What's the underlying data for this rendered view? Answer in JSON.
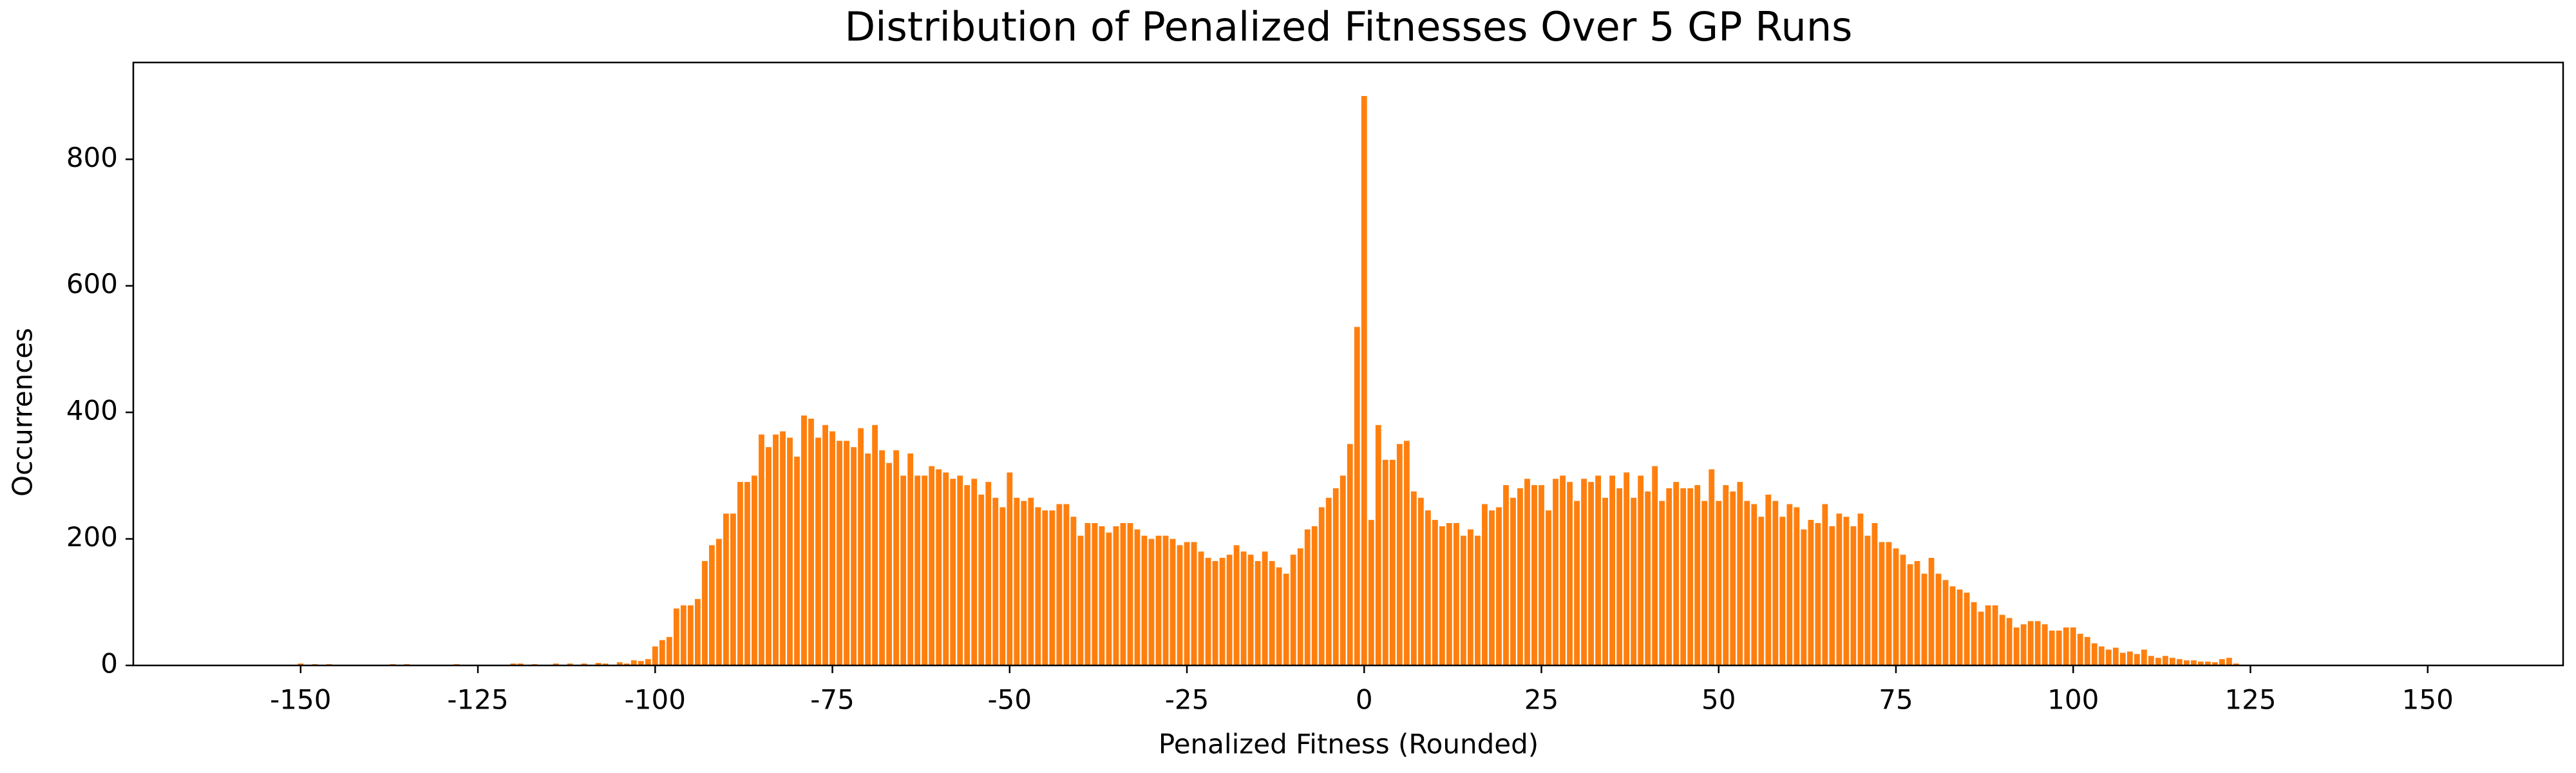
{
  "chart_data": {
    "type": "bar",
    "title": "Distribution of Penalized Fitnesses Over 5 GP Runs",
    "xlabel": "Penalized Fitness (Rounded)",
    "ylabel": "Occurrences",
    "color": "#ff7f0e",
    "xlim": [
      -173.6,
      169.1
    ],
    "ylim": [
      0,
      953
    ],
    "xticks": [
      -150,
      -125,
      -100,
      -75,
      -50,
      -25,
      0,
      25,
      50,
      75,
      100,
      125,
      150
    ],
    "yticks": [
      0,
      200,
      400,
      600,
      800
    ],
    "grid": false,
    "x": [
      -150,
      -148,
      -146,
      -137,
      -135,
      -130,
      -128,
      -120,
      -119,
      -117,
      -114,
      -112,
      -110,
      -108,
      -107,
      -105,
      -104,
      -103,
      -102,
      -101,
      -100,
      -99,
      -98,
      -97,
      -96,
      -95,
      -94,
      -93,
      -92,
      -91,
      -90,
      -89,
      -88,
      -87,
      -86,
      -85,
      -84,
      -83,
      -82,
      -81,
      -80,
      -79,
      -78,
      -77,
      -76,
      -75,
      -74,
      -73,
      -72,
      -71,
      -70,
      -69,
      -68,
      -67,
      -66,
      -65,
      -64,
      -63,
      -62,
      -61,
      -60,
      -59,
      -58,
      -57,
      -56,
      -55,
      -54,
      -53,
      -52,
      -51,
      -50,
      -49,
      -48,
      -47,
      -46,
      -45,
      -44,
      -43,
      -42,
      -41,
      -40,
      -39,
      -38,
      -37,
      -36,
      -35,
      -34,
      -33,
      -32,
      -31,
      -30,
      -29,
      -28,
      -27,
      -26,
      -25,
      -24,
      -23,
      -22,
      -21,
      -20,
      -19,
      -18,
      -17,
      -16,
      -15,
      -14,
      -13,
      -12,
      -11,
      -10,
      -9,
      -8,
      -7,
      -6,
      -5,
      -4,
      -3,
      -2,
      -1,
      0,
      1,
      2,
      3,
      4,
      5,
      6,
      7,
      8,
      9,
      10,
      11,
      12,
      13,
      14,
      15,
      16,
      17,
      18,
      19,
      20,
      21,
      22,
      23,
      24,
      25,
      26,
      27,
      28,
      29,
      30,
      31,
      32,
      33,
      34,
      35,
      36,
      37,
      38,
      39,
      40,
      41,
      42,
      43,
      44,
      45,
      46,
      47,
      48,
      49,
      50,
      51,
      52,
      53,
      54,
      55,
      56,
      57,
      58,
      59,
      60,
      61,
      62,
      63,
      64,
      65,
      66,
      67,
      68,
      69,
      70,
      71,
      72,
      73,
      74,
      75,
      76,
      77,
      78,
      79,
      80,
      81,
      82,
      83,
      84,
      85,
      86,
      87,
      88,
      89,
      90,
      91,
      92,
      93,
      94,
      95,
      96,
      97,
      98,
      99,
      100,
      101,
      102,
      103,
      104,
      105,
      106,
      107,
      108,
      109,
      110,
      111,
      112,
      113,
      114,
      115,
      116,
      117,
      118,
      119,
      120,
      121,
      122,
      123
    ],
    "values": [
      3,
      2,
      2,
      2,
      2,
      1,
      2,
      3,
      3,
      2,
      3,
      3,
      3,
      4,
      3,
      5,
      3,
      8,
      7,
      10,
      30,
      40,
      45,
      90,
      95,
      95,
      105,
      165,
      190,
      200,
      240,
      240,
      290,
      290,
      300,
      365,
      345,
      365,
      370,
      360,
      330,
      395,
      390,
      360,
      380,
      370,
      355,
      355,
      345,
      375,
      335,
      380,
      340,
      320,
      340,
      300,
      335,
      300,
      300,
      315,
      310,
      305,
      295,
      300,
      285,
      295,
      270,
      290,
      265,
      250,
      305,
      265,
      260,
      265,
      250,
      245,
      245,
      255,
      255,
      235,
      205,
      225,
      225,
      220,
      210,
      220,
      225,
      225,
      215,
      205,
      200,
      205,
      205,
      200,
      190,
      195,
      195,
      180,
      170,
      165,
      170,
      175,
      190,
      180,
      175,
      165,
      180,
      165,
      155,
      145,
      175,
      185,
      215,
      220,
      250,
      265,
      280,
      300,
      350,
      535,
      900,
      230,
      380,
      325,
      325,
      350,
      355,
      275,
      265,
      245,
      230,
      220,
      225,
      225,
      205,
      215,
      205,
      255,
      245,
      250,
      285,
      265,
      280,
      295,
      285,
      285,
      245,
      295,
      300,
      290,
      260,
      295,
      290,
      300,
      265,
      300,
      280,
      305,
      265,
      300,
      275,
      315,
      260,
      280,
      290,
      280,
      280,
      285,
      260,
      310,
      260,
      285,
      275,
      290,
      260,
      255,
      235,
      270,
      260,
      235,
      255,
      250,
      215,
      230,
      225,
      255,
      220,
      240,
      235,
      220,
      240,
      205,
      225,
      195,
      195,
      185,
      175,
      160,
      165,
      145,
      170,
      145,
      135,
      125,
      120,
      115,
      100,
      85,
      95,
      95,
      80,
      75,
      60,
      65,
      70,
      70,
      65,
      55,
      55,
      60,
      60,
      50,
      45,
      35,
      30,
      25,
      28,
      20,
      22,
      18,
      25,
      15,
      12,
      15,
      12,
      10,
      8,
      8,
      6,
      6,
      5,
      10,
      12,
      3
    ]
  }
}
